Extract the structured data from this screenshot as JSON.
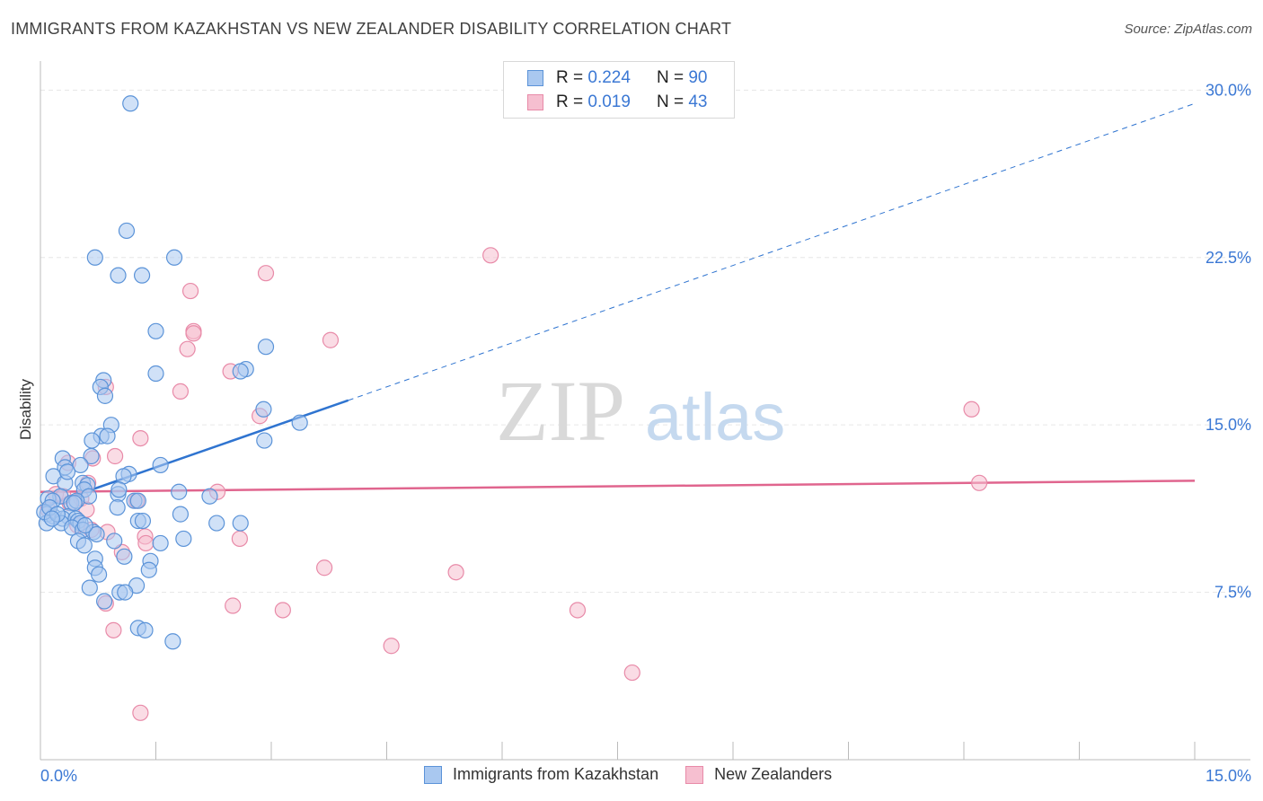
{
  "title": "IMMIGRANTS FROM KAZAKHSTAN VS NEW ZEALANDER DISABILITY CORRELATION CHART",
  "source": "Source: ZipAtlas.com",
  "watermark": {
    "zip": "ZIP",
    "atlas": "atlas"
  },
  "legend": {
    "series1": {
      "r_label": "R =",
      "r_value": "0.224",
      "n_label": "N =",
      "n_value": "90"
    },
    "series2": {
      "r_label": "R =",
      "r_value": "0.019",
      "n_label": "N =",
      "n_value": "43"
    }
  },
  "bottom_legend": {
    "series1": "Immigrants from Kazakhstan",
    "series2": "New Zealanders"
  },
  "colors": {
    "series1_fill": "#a9c8f0",
    "series1_stroke": "#5b93d8",
    "series1_line": "#2f74d0",
    "series2_fill": "#f6bfd0",
    "series2_stroke": "#e88aa8",
    "series2_line": "#e0658e",
    "axis_label": "#3b78d4",
    "grid": "#e6e6e6"
  },
  "chart_data": {
    "type": "scatter",
    "title": "IMMIGRANTS FROM KAZAKHSTAN VS NEW ZEALANDER DISABILITY CORRELATION CHART",
    "xlabel": "",
    "ylabel": "Disability",
    "xlim": [
      0,
      15
    ],
    "ylim": [
      0,
      30.9
    ],
    "x_tick_labels": [
      "0.0%",
      "15.0%"
    ],
    "y_ticks": [
      7.5,
      15.0,
      22.5,
      30.0
    ],
    "y_tick_labels": [
      "7.5%",
      "15.0%",
      "22.5%",
      "30.0%"
    ],
    "grid": true,
    "series": [
      {
        "name": "Immigrants from Kazakhstan",
        "R": 0.224,
        "N": 90,
        "trend": {
          "x0": 0.0,
          "y0": 11.3,
          "x1": 4.0,
          "y1": 16.1,
          "dash_to_x": 15.0,
          "dash_to_y": 29.4
        },
        "points": [
          [
            1.17,
            29.4
          ],
          [
            1.12,
            23.7
          ],
          [
            0.71,
            22.5
          ],
          [
            1.74,
            22.5
          ],
          [
            1.01,
            21.7
          ],
          [
            1.32,
            21.7
          ],
          [
            1.5,
            19.2
          ],
          [
            2.93,
            18.5
          ],
          [
            2.67,
            17.5
          ],
          [
            2.6,
            17.4
          ],
          [
            1.5,
            17.3
          ],
          [
            0.82,
            17.0
          ],
          [
            0.78,
            16.7
          ],
          [
            0.84,
            16.3
          ],
          [
            2.9,
            15.7
          ],
          [
            3.37,
            15.1
          ],
          [
            0.92,
            15.0
          ],
          [
            0.79,
            14.5
          ],
          [
            0.87,
            14.5
          ],
          [
            0.67,
            14.3
          ],
          [
            2.91,
            14.3
          ],
          [
            0.66,
            13.6
          ],
          [
            0.29,
            13.5
          ],
          [
            0.52,
            13.2
          ],
          [
            1.56,
            13.2
          ],
          [
            0.32,
            13.1
          ],
          [
            1.15,
            12.8
          ],
          [
            1.08,
            12.7
          ],
          [
            0.17,
            12.7
          ],
          [
            0.32,
            12.4
          ],
          [
            0.55,
            12.4
          ],
          [
            0.61,
            12.3
          ],
          [
            0.57,
            12.1
          ],
          [
            1.8,
            12.0
          ],
          [
            1.01,
            11.9
          ],
          [
            2.2,
            11.8
          ],
          [
            0.63,
            11.8
          ],
          [
            0.26,
            11.8
          ],
          [
            0.1,
            11.7
          ],
          [
            0.16,
            11.6
          ],
          [
            1.22,
            11.6
          ],
          [
            1.27,
            11.6
          ],
          [
            0.4,
            11.5
          ],
          [
            0.47,
            11.6
          ],
          [
            1.0,
            11.3
          ],
          [
            1.82,
            11.0
          ],
          [
            0.09,
            11.0
          ],
          [
            0.17,
            10.9
          ],
          [
            0.36,
            10.9
          ],
          [
            0.29,
            10.8
          ],
          [
            0.46,
            10.8
          ],
          [
            0.49,
            10.7
          ],
          [
            0.52,
            10.6
          ],
          [
            0.27,
            10.6
          ],
          [
            0.08,
            10.6
          ],
          [
            1.27,
            10.7
          ],
          [
            1.33,
            10.7
          ],
          [
            2.29,
            10.6
          ],
          [
            2.6,
            10.6
          ],
          [
            0.41,
            10.4
          ],
          [
            0.55,
            10.3
          ],
          [
            0.69,
            10.2
          ],
          [
            0.73,
            10.1
          ],
          [
            0.49,
            9.8
          ],
          [
            0.57,
            9.6
          ],
          [
            0.96,
            9.8
          ],
          [
            1.56,
            9.7
          ],
          [
            1.86,
            9.9
          ],
          [
            0.71,
            9.0
          ],
          [
            1.09,
            9.1
          ],
          [
            1.43,
            8.9
          ],
          [
            0.71,
            8.6
          ],
          [
            1.41,
            8.5
          ],
          [
            0.76,
            8.3
          ],
          [
            1.25,
            7.8
          ],
          [
            0.64,
            7.7
          ],
          [
            1.03,
            7.5
          ],
          [
            1.1,
            7.5
          ],
          [
            0.83,
            7.1
          ],
          [
            1.27,
            5.9
          ],
          [
            1.36,
            5.8
          ],
          [
            1.72,
            5.3
          ],
          [
            0.05,
            11.1
          ],
          [
            0.12,
            11.3
          ],
          [
            0.22,
            11.0
          ],
          [
            0.35,
            12.9
          ],
          [
            0.44,
            11.5
          ],
          [
            0.58,
            10.5
          ],
          [
            1.02,
            12.1
          ],
          [
            0.15,
            10.8
          ]
        ]
      },
      {
        "name": "New Zealanders",
        "R": 0.019,
        "N": 43,
        "trend": {
          "x0": 0.0,
          "y0": 12.0,
          "x1": 15.0,
          "y1": 12.5
        },
        "points": [
          [
            5.85,
            22.6
          ],
          [
            2.93,
            21.8
          ],
          [
            1.95,
            21.0
          ],
          [
            1.99,
            19.2
          ],
          [
            1.99,
            19.1
          ],
          [
            3.77,
            18.8
          ],
          [
            1.91,
            18.4
          ],
          [
            2.47,
            17.4
          ],
          [
            0.85,
            16.7
          ],
          [
            1.82,
            16.5
          ],
          [
            2.85,
            15.4
          ],
          [
            1.3,
            14.4
          ],
          [
            12.1,
            15.7
          ],
          [
            0.97,
            13.6
          ],
          [
            0.68,
            13.5
          ],
          [
            0.36,
            13.3
          ],
          [
            0.62,
            12.4
          ],
          [
            12.2,
            12.4
          ],
          [
            2.3,
            12.0
          ],
          [
            1.25,
            11.6
          ],
          [
            0.53,
            11.7
          ],
          [
            0.2,
            11.9
          ],
          [
            0.38,
            11.5
          ],
          [
            0.6,
            11.2
          ],
          [
            0.1,
            11.2
          ],
          [
            0.48,
            10.5
          ],
          [
            0.87,
            10.2
          ],
          [
            1.36,
            10.0
          ],
          [
            0.66,
            10.3
          ],
          [
            2.59,
            9.9
          ],
          [
            1.37,
            9.7
          ],
          [
            1.06,
            9.3
          ],
          [
            3.69,
            8.6
          ],
          [
            5.4,
            8.4
          ],
          [
            2.5,
            6.9
          ],
          [
            3.15,
            6.7
          ],
          [
            6.98,
            6.7
          ],
          [
            0.95,
            5.8
          ],
          [
            4.56,
            5.1
          ],
          [
            7.69,
            3.9
          ],
          [
            1.3,
            2.1
          ],
          [
            0.85,
            7.0
          ],
          [
            0.3,
            11.8
          ]
        ]
      }
    ]
  }
}
